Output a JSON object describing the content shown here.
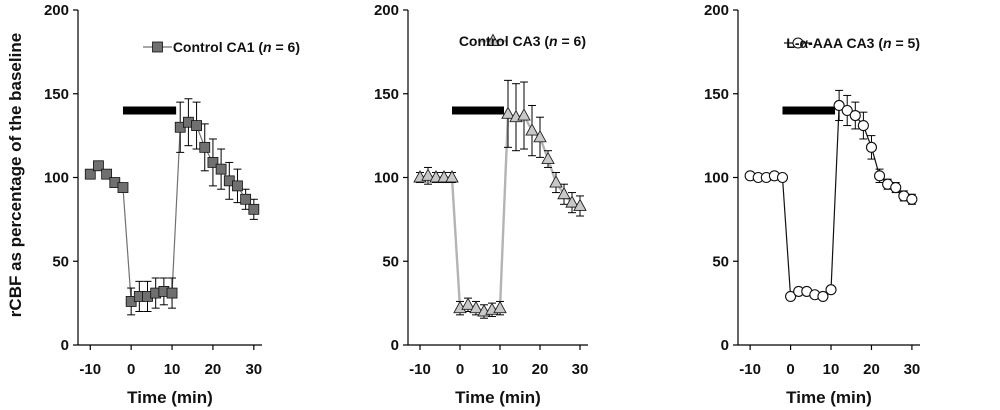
{
  "figure": {
    "ylabel": "rCBF as percentage of the baseline"
  },
  "chart_data": [
    {
      "type": "line",
      "xlabel": "Time (min)",
      "ylabel": "rCBF as percentage of the baseline",
      "xlim": [
        -13,
        32
      ],
      "ylim": [
        0,
        200
      ],
      "x_ticks": [
        -10,
        0,
        10,
        20,
        30
      ],
      "y_ticks": [
        0,
        50,
        100,
        150,
        200
      ],
      "legend_location": "top-right",
      "legend": {
        "prefix": "Control  CA1 (",
        "n_label": "n",
        "suffix": " = 6)"
      },
      "stimulus_bar": {
        "x_start": -2,
        "x_end": 11,
        "y": 140
      },
      "series": [
        {
          "name": "Control  CA1 (n = 6)",
          "marker": "square",
          "marker_fill": "#707070",
          "line_color": "#707070",
          "x": [
            -10,
            -8,
            -6,
            -4,
            -2,
            0,
            2,
            4,
            6,
            8,
            10,
            12,
            14,
            16,
            18,
            20,
            22,
            24,
            26,
            28,
            30
          ],
          "y": [
            102,
            107,
            102,
            97,
            94,
            26,
            29,
            29,
            31,
            32,
            31,
            130,
            133,
            131,
            118,
            109,
            105,
            98,
            95,
            87,
            81
          ],
          "error": [
            0,
            0,
            0,
            0,
            0,
            8,
            9,
            9,
            9,
            8,
            9,
            15,
            14,
            14,
            14,
            14,
            12,
            11,
            10,
            6,
            6
          ]
        }
      ]
    },
    {
      "type": "line",
      "xlabel": "Time (min)",
      "ylabel": "",
      "xlim": [
        -13,
        32
      ],
      "ylim": [
        0,
        200
      ],
      "x_ticks": [
        -10,
        0,
        10,
        20,
        30
      ],
      "y_ticks": [
        0,
        50,
        100,
        150,
        200
      ],
      "legend_location": "top-right",
      "legend": {
        "prefix": "Control  CA3 (",
        "n_label": "n",
        "suffix": " = 6)"
      },
      "stimulus_bar": {
        "x_start": -2,
        "x_end": 11,
        "y": 140
      },
      "series": [
        {
          "name": "Control  CA3 (n = 6)",
          "marker": "triangle",
          "marker_fill": "#c8c8c8",
          "line_color": "#b4b4b4",
          "x": [
            -10,
            -8,
            -6,
            -4,
            -2,
            0,
            2,
            4,
            6,
            8,
            10,
            12,
            14,
            16,
            18,
            20,
            22,
            24,
            26,
            28,
            30
          ],
          "y": [
            100,
            101,
            100,
            100,
            100,
            22,
            24,
            22,
            20,
            21,
            22,
            138,
            136,
            137,
            128,
            124,
            111,
            97,
            90,
            85,
            83
          ],
          "error": [
            3,
            5,
            3,
            3,
            3,
            4,
            4,
            4,
            4,
            4,
            4,
            20,
            20,
            20,
            15,
            12,
            5,
            6,
            6,
            6,
            6
          ]
        }
      ]
    },
    {
      "type": "line",
      "xlabel": "Time (min)",
      "ylabel": "",
      "xlim": [
        -13,
        32
      ],
      "ylim": [
        0,
        200
      ],
      "x_ticks": [
        -10,
        0,
        10,
        20,
        30
      ],
      "y_ticks": [
        0,
        50,
        100,
        150,
        200
      ],
      "legend_location": "top-right",
      "legend": {
        "prefix": "L-α-AAA   CA3 (",
        "n_label": "n",
        "suffix": " = 5)"
      },
      "stimulus_bar": {
        "x_start": -2,
        "x_end": 11,
        "y": 140
      },
      "series": [
        {
          "name": "L-α-AAA   CA3 (n = 5)",
          "marker": "circle",
          "marker_fill": "#ffffff",
          "line_color": "#111111",
          "x": [
            -10,
            -8,
            -6,
            -4,
            -2,
            0,
            2,
            4,
            6,
            8,
            10,
            12,
            14,
            16,
            18,
            20,
            22,
            24,
            26,
            28,
            30
          ],
          "y": [
            101,
            100,
            100,
            101,
            100,
            29,
            32,
            32,
            30,
            29,
            33,
            143,
            140,
            137,
            131,
            118,
            101,
            96,
            94,
            89,
            87
          ],
          "error": [
            0,
            0,
            0,
            0,
            0,
            0,
            0,
            0,
            0,
            0,
            0,
            9,
            9,
            8,
            8,
            7,
            4,
            3,
            3,
            3,
            3
          ]
        }
      ]
    }
  ]
}
